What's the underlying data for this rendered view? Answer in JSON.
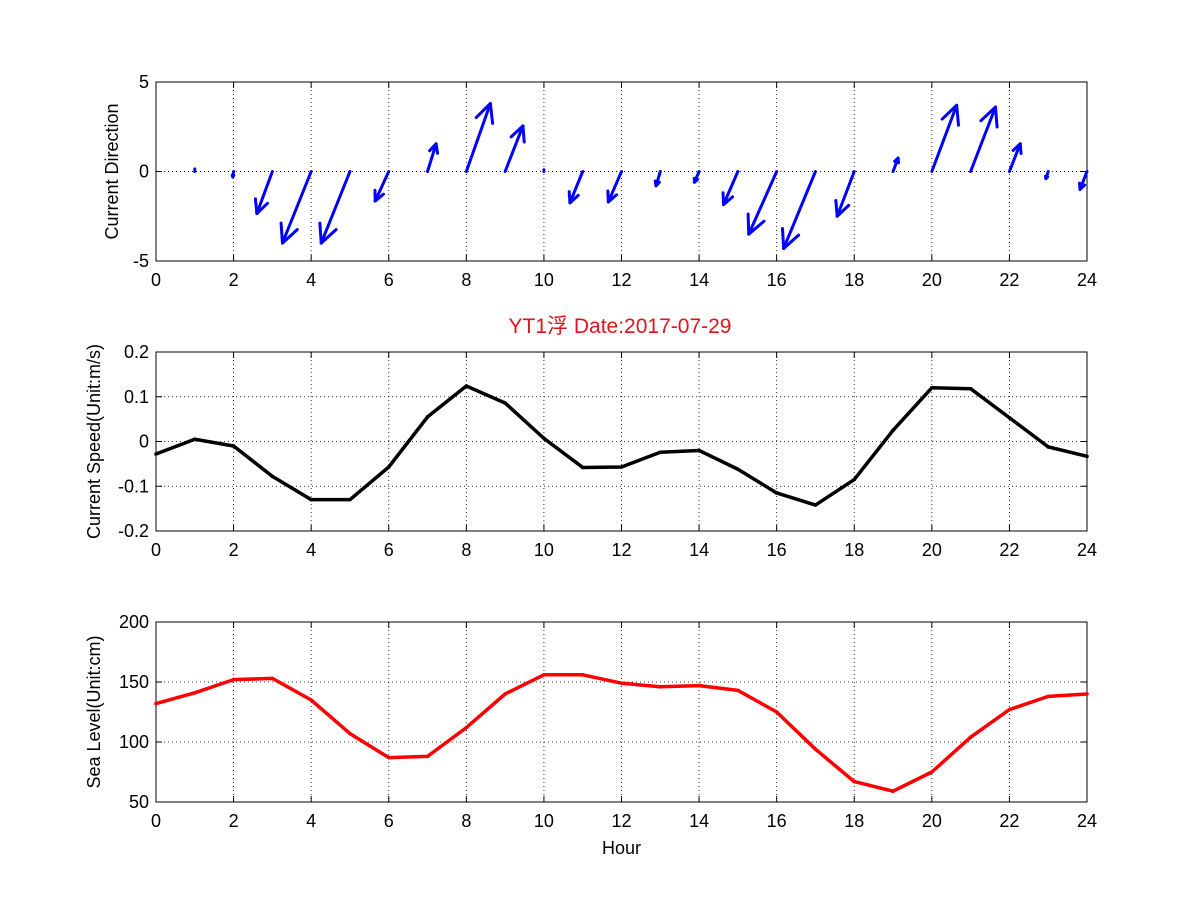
{
  "title": "YT1浮   Date:2017-07-29",
  "colors": {
    "direction": "#0000ff",
    "speed": "#000000",
    "sea_level": "#ff0000",
    "title": "#e0141e"
  },
  "chart_data": [
    {
      "type": "quiver",
      "ylabel": "Current Direction",
      "xlabel": "",
      "xlim": [
        0,
        24
      ],
      "ylim": [
        -5,
        5
      ],
      "xticks": [
        0,
        2,
        4,
        6,
        8,
        10,
        12,
        14,
        16,
        18,
        20,
        22,
        24
      ],
      "yticks": [
        -5,
        0,
        5
      ],
      "grid": true,
      "x": [
        1,
        2,
        3,
        4,
        5,
        6,
        7,
        8,
        9,
        10,
        11,
        12,
        13,
        14,
        15,
        16,
        17,
        18,
        19,
        20,
        21,
        22,
        23,
        24
      ],
      "u": [
        0.0,
        -0.02,
        -0.4,
        -0.74,
        -0.74,
        -0.35,
        0.22,
        0.62,
        0.46,
        0.0,
        -0.33,
        -0.34,
        -0.11,
        -0.12,
        -0.37,
        -0.72,
        -0.82,
        -0.44,
        0.13,
        0.64,
        0.64,
        0.28,
        -0.06,
        -0.18
      ],
      "v": [
        0.15,
        -0.3,
        -2.35,
        -4.0,
        -4.0,
        -1.65,
        1.55,
        3.8,
        2.55,
        0.1,
        -1.75,
        -1.7,
        -0.8,
        -0.6,
        -1.85,
        -3.5,
        -4.3,
        -2.5,
        0.75,
        3.7,
        3.6,
        1.55,
        -0.4,
        -1.0
      ]
    },
    {
      "type": "line",
      "ylabel": "Current Speed(Unit:m/s)",
      "xlabel": "",
      "xlim": [
        0,
        24
      ],
      "ylim": [
        -0.2,
        0.2
      ],
      "xticks": [
        0,
        2,
        4,
        6,
        8,
        10,
        12,
        14,
        16,
        18,
        20,
        22,
        24
      ],
      "yticks": [
        -0.2,
        -0.1,
        0,
        0.1,
        0.2
      ],
      "grid": true,
      "x": [
        0,
        1,
        2,
        3,
        4,
        5,
        6,
        7,
        8,
        9,
        10,
        11,
        12,
        13,
        14,
        15,
        16,
        17,
        18,
        19,
        20,
        21,
        22,
        23,
        24
      ],
      "y": [
        -0.028,
        0.005,
        -0.01,
        -0.078,
        -0.13,
        -0.13,
        -0.057,
        0.055,
        0.124,
        0.086,
        0.007,
        -0.058,
        -0.057,
        -0.024,
        -0.02,
        -0.062,
        -0.115,
        -0.142,
        -0.085,
        0.025,
        0.12,
        0.118,
        0.053,
        -0.012,
        -0.033
      ]
    },
    {
      "type": "line",
      "ylabel": "Sea Level(Unit:cm)",
      "xlabel": "Hour",
      "xlim": [
        0,
        24
      ],
      "ylim": [
        50,
        200
      ],
      "xticks": [
        0,
        2,
        4,
        6,
        8,
        10,
        12,
        14,
        16,
        18,
        20,
        22,
        24
      ],
      "yticks": [
        50,
        100,
        150,
        200
      ],
      "grid": true,
      "x": [
        0,
        1,
        2,
        3,
        4,
        5,
        6,
        7,
        8,
        9,
        10,
        11,
        12,
        13,
        14,
        15,
        16,
        17,
        18,
        19,
        20,
        21,
        22,
        23,
        24
      ],
      "y": [
        132,
        141,
        152,
        153,
        135,
        107,
        87,
        88,
        112,
        140,
        156,
        156,
        149,
        146,
        147,
        143,
        125,
        94,
        67,
        59,
        75,
        104,
        127,
        138,
        140
      ]
    }
  ]
}
